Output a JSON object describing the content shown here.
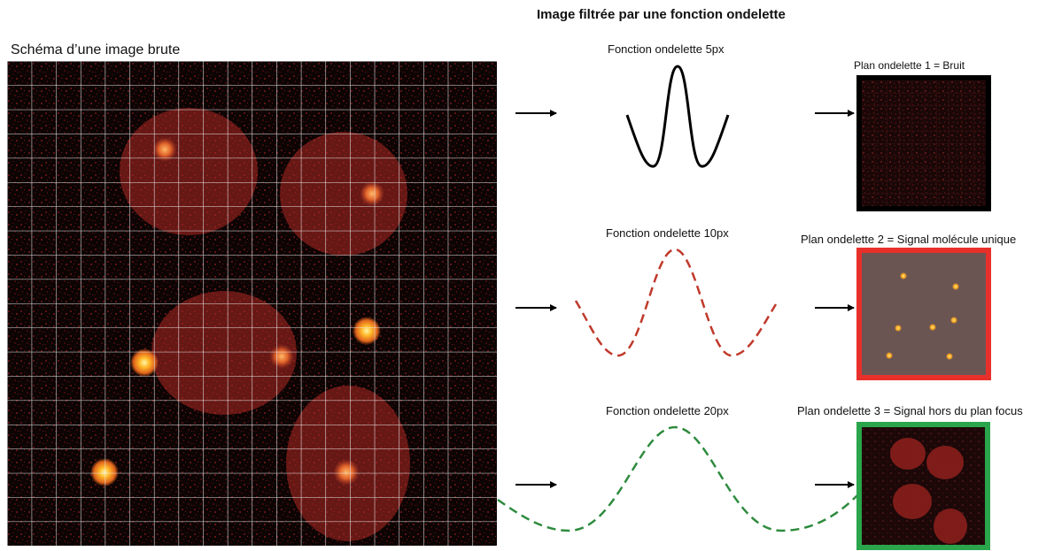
{
  "figure": {
    "title": "Image filtrée par une fonction ondelette",
    "raw_image": {
      "label": "Schéma d’une image brute"
    },
    "wavelets": [
      {
        "label": "Fonction ondelette 5px",
        "color": "#000000"
      },
      {
        "label": "Fonction ondelette 10px",
        "color": "#c0392b"
      },
      {
        "label": "Fonction ondelette 20px",
        "color": "#2e8b3e"
      }
    ],
    "planes": [
      {
        "label": "Plan ondelette 1  = Bruit",
        "border_color": "#000000"
      },
      {
        "label": "Plan ondelette 2  = Signal molécule unique",
        "border_color": "#e8302b"
      },
      {
        "label": "Plan ondelette 3  = Signal hors du plan focus",
        "border_color": "#2aa54b"
      }
    ]
  }
}
